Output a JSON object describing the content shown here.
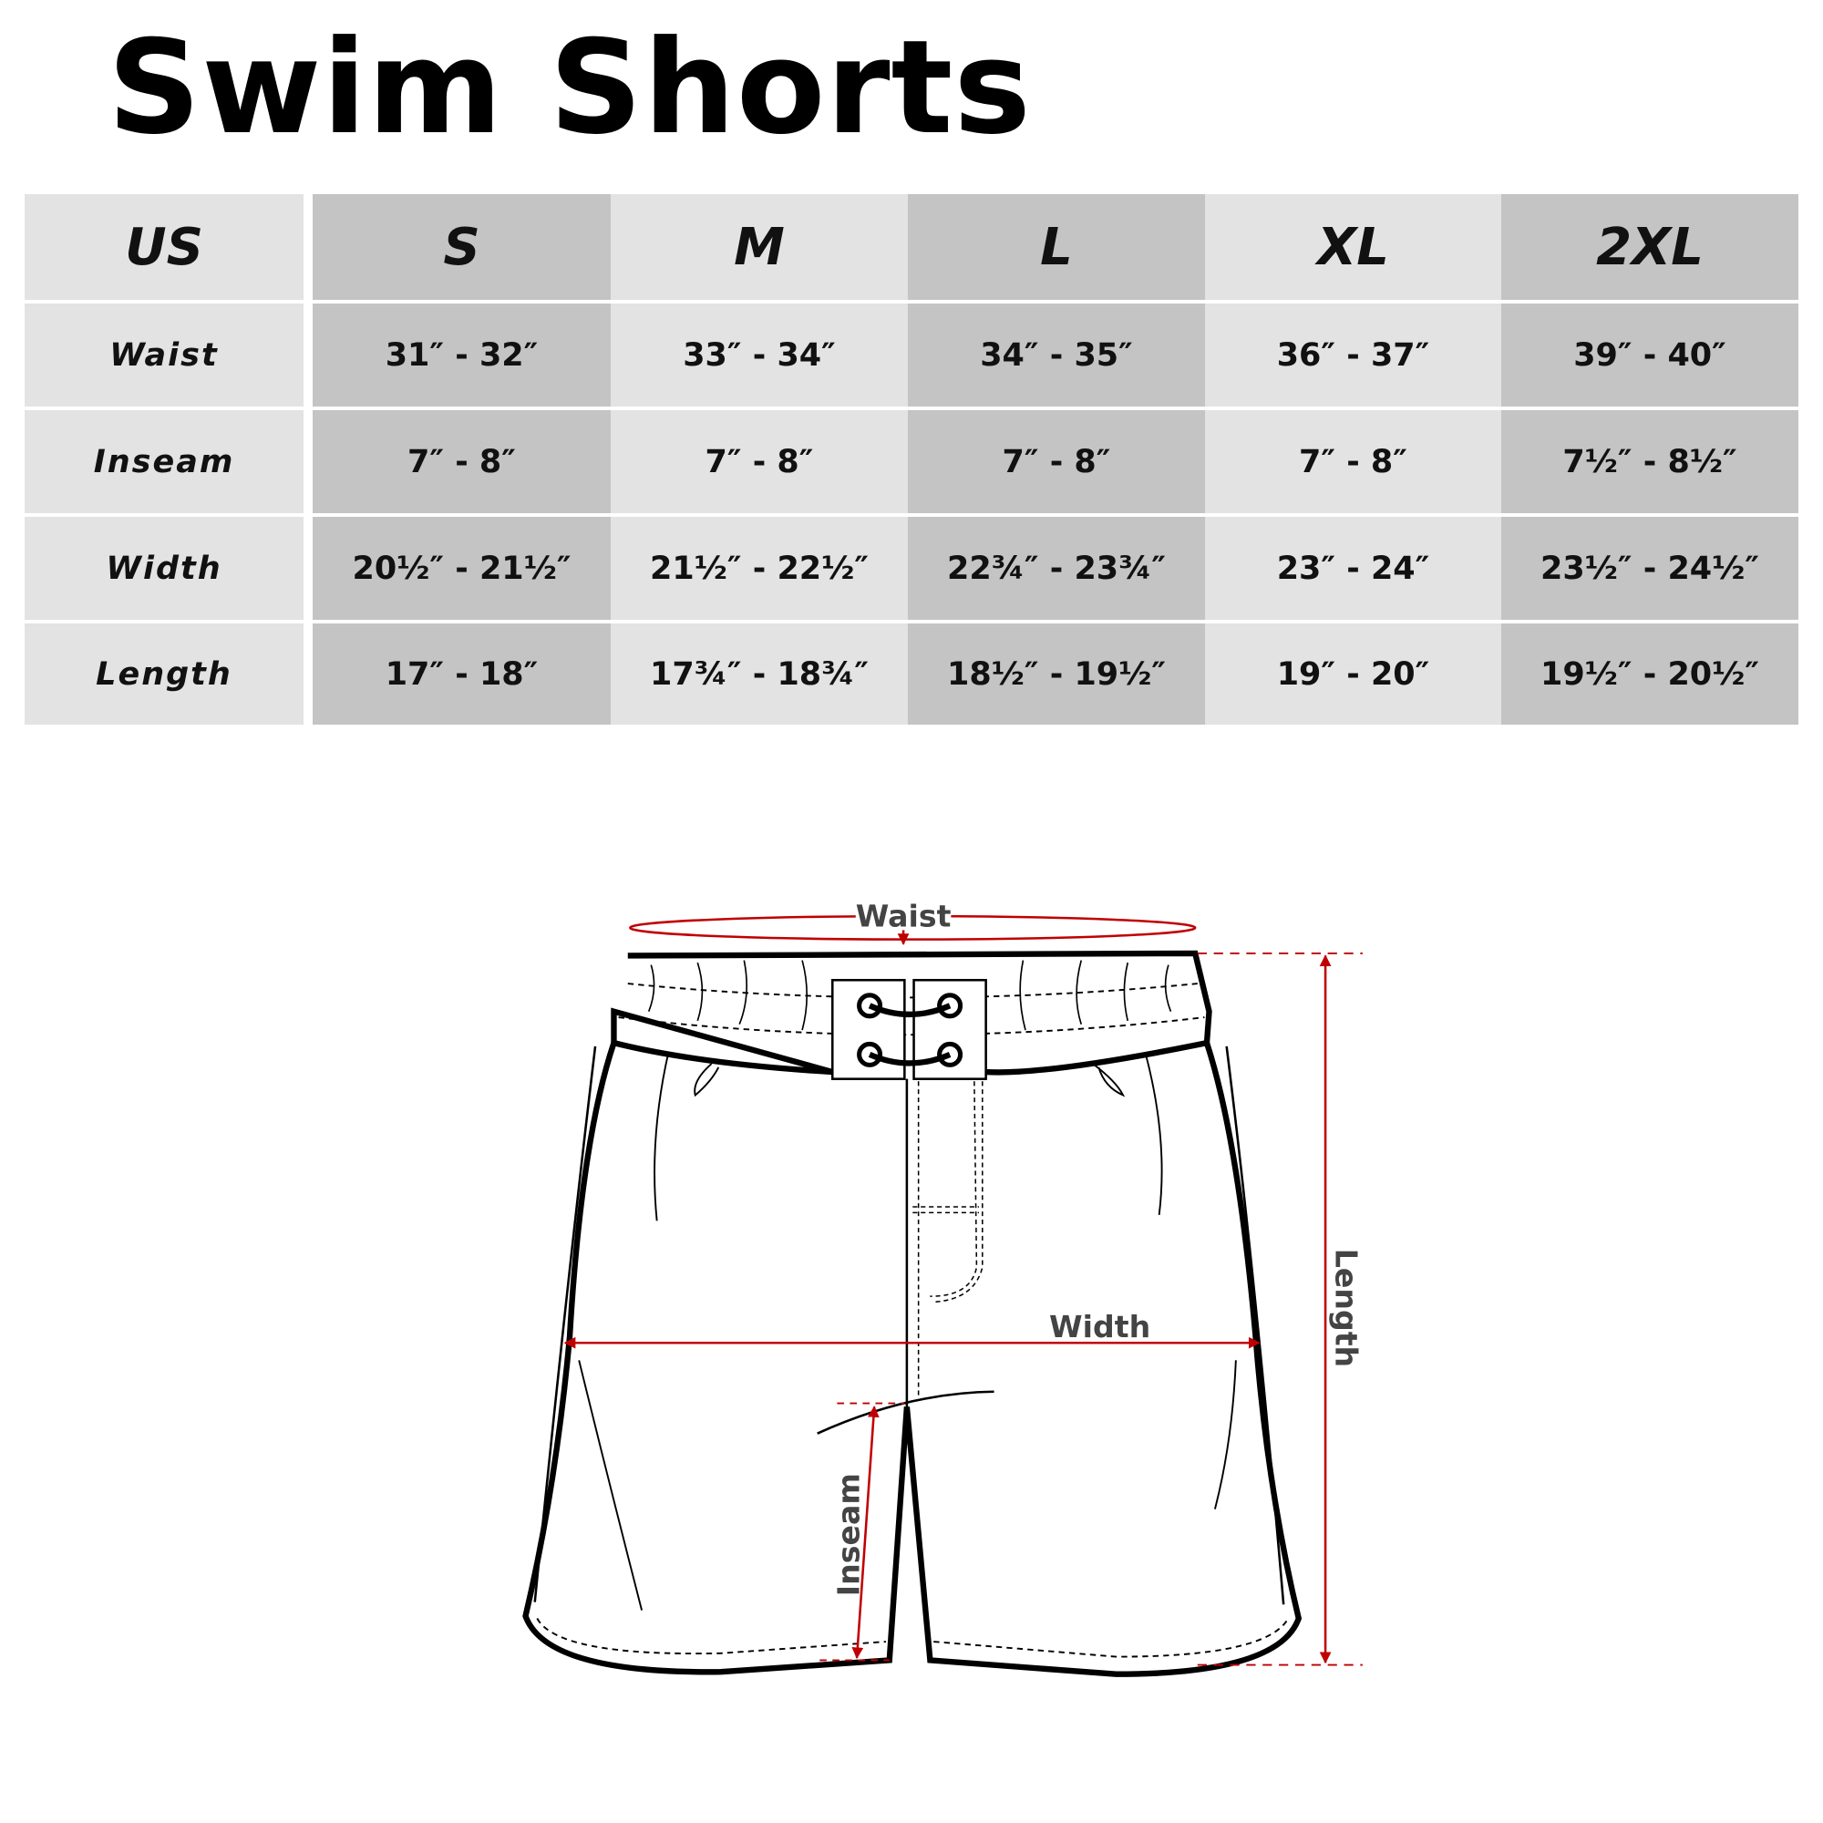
{
  "title": "Swim Shorts",
  "table": {
    "header": [
      "US",
      "S",
      "M",
      "L",
      "XL",
      "2XL"
    ],
    "rows": [
      {
        "label": "Waist",
        "values": [
          "31″ - 32″",
          "33″ - 34″",
          "34″ - 35″",
          "36″ - 37″",
          "39″ - 40″"
        ]
      },
      {
        "label": "Inseam",
        "values": [
          "7″ - 8″",
          "7″ - 8″",
          "7″ - 8″",
          "7″ - 8″",
          "7½″ - 8½″"
        ]
      },
      {
        "label": "Width",
        "values": [
          "20½″ - 21½″",
          "21½″ - 22½″",
          "22¾″ - 23¾″",
          "23″ - 24″",
          "23½″ - 24½″"
        ]
      },
      {
        "label": "Length",
        "values": [
          "17″ - 18″",
          "17¾″ - 18¾″",
          "18½″ - 19½″",
          "19″ - 20″",
          "19½″ - 20½″"
        ]
      }
    ]
  },
  "diagram": {
    "waist_label": "Waist",
    "width_label": "Width",
    "length_label": "Length",
    "inseam_label": "Inseam",
    "measure_color": "#c00000",
    "label_color": "#444444"
  },
  "colors": {
    "light_cell": "#e3e3e3",
    "dark_cell": "#c4c4c4"
  }
}
